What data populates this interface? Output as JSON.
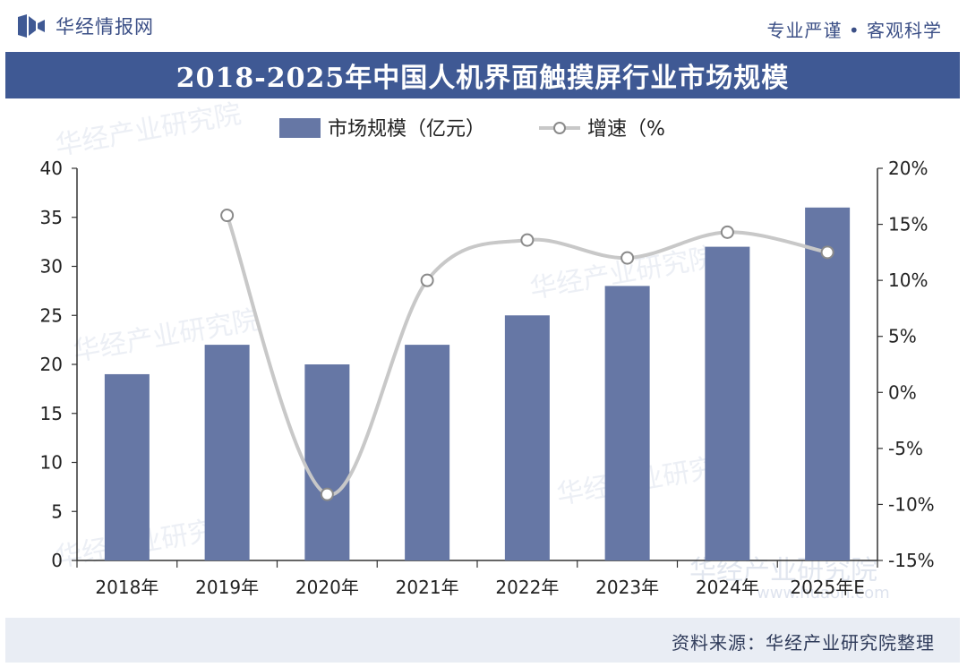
{
  "header": {
    "brand": "华经情报网",
    "slogan": "专业严谨 • 客观科学"
  },
  "chart_data": {
    "type": "bar",
    "title": "2018-2025年中国人机界面触摸屏行业市场规模",
    "categories": [
      "2018年",
      "2019年",
      "2020年",
      "2021年",
      "2022年",
      "2023年",
      "2024年",
      "2025年E"
    ],
    "series": [
      {
        "name": "市场规模（亿元）",
        "type": "bar",
        "axis": "left",
        "color": "#6677a5",
        "values": [
          19,
          22,
          20,
          22,
          25,
          28,
          32,
          36
        ]
      },
      {
        "name": "增速（%",
        "type": "line",
        "axis": "right",
        "color": "#c8c8c8",
        "values": [
          null,
          15.8,
          -9.1,
          10.0,
          13.6,
          12.0,
          14.3,
          12.5
        ]
      }
    ],
    "y_left": {
      "min": 0,
      "max": 40,
      "ticks": [
        "0",
        "5",
        "10",
        "15",
        "20",
        "25",
        "30",
        "35",
        "40"
      ]
    },
    "y_right": {
      "min": -15,
      "max": 20,
      "ticks": [
        "-15%",
        "-10%",
        "-5%",
        "0%",
        "5%",
        "10%",
        "15%",
        "20%"
      ]
    },
    "legend_position": "top-center",
    "grid": false
  },
  "watermark": {
    "text": "华经产业研究院",
    "url": "www.huaon.com"
  },
  "footer": {
    "source": "资料来源：华经产业研究院整理"
  }
}
